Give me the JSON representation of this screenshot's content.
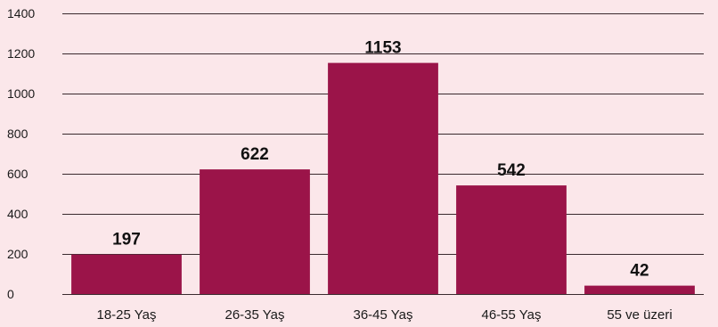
{
  "chart_data": {
    "type": "bar",
    "categories": [
      "18-25 Yaş",
      "26-35 Yaş",
      "36-45 Yaş",
      "46-55 Yaş",
      "55 ve üzeri"
    ],
    "values": [
      197,
      622,
      1153,
      542,
      42
    ],
    "data_labels": [
      "197",
      "622",
      "1153",
      "542",
      "42"
    ],
    "y_ticks": [
      "0",
      "200",
      "400",
      "600",
      "800",
      "1000",
      "1200",
      "1400"
    ],
    "ylim": [
      0,
      1400
    ],
    "grid": true,
    "bar_color": "#9b1449",
    "background_color": "#fbe7ea"
  }
}
